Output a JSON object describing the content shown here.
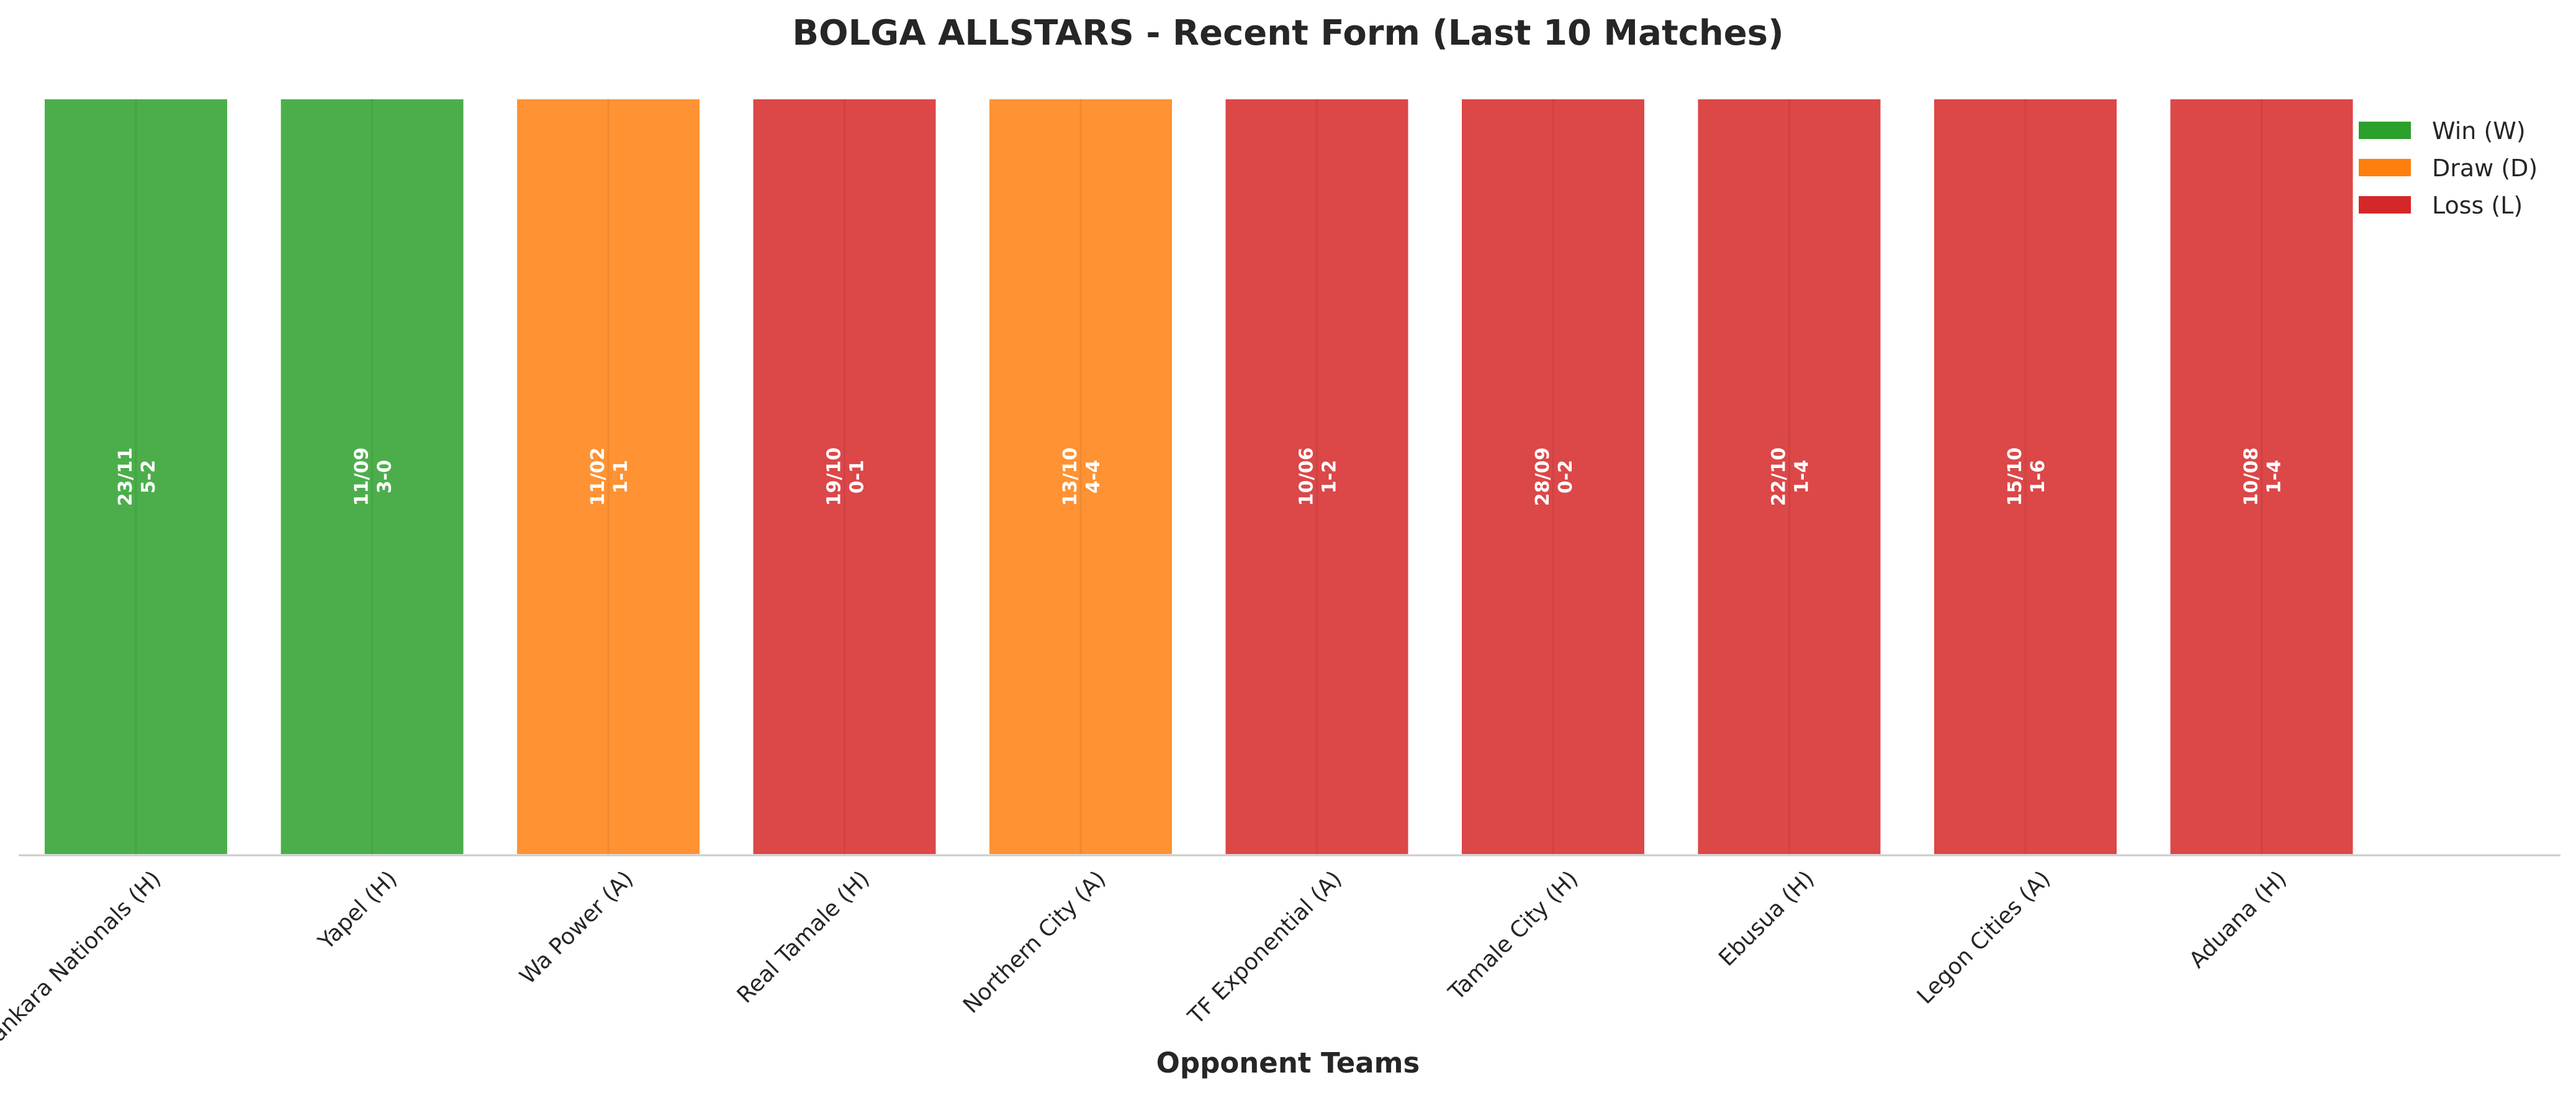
{
  "chart_data": {
    "type": "bar",
    "title": "BOLGA ALLSTARS - Recent Form (Last 10 Matches)",
    "xlabel": "Opponent Teams",
    "ylabel": "",
    "categories": [
      "Sankara Nationals (H)",
      "Yapel (H)",
      "Wa Power (A)",
      "Real Tamale (H)",
      "Northern City (A)",
      "TF Exponential (A)",
      "Tamale City (H)",
      "Ebusua (H)",
      "Legon Cities (A)",
      "Aduana (H)"
    ],
    "values": [
      1,
      1,
      1,
      1,
      1,
      1,
      1,
      1,
      1,
      1
    ],
    "results": [
      "W",
      "W",
      "D",
      "L",
      "D",
      "L",
      "L",
      "L",
      "L",
      "L"
    ],
    "dates": [
      "23/11",
      "11/09",
      "11/02",
      "19/10",
      "13/10",
      "10/06",
      "28/09",
      "22/10",
      "15/10",
      "10/08"
    ],
    "scores": [
      "5-2",
      "3-0",
      "1-1",
      "0-1",
      "4-4",
      "1-2",
      "0-2",
      "1-4",
      "1-6",
      "1-4"
    ],
    "ylim": [
      0,
      1.13
    ],
    "grid": false,
    "legend_position": "top-right",
    "legend": [
      {
        "key": "W",
        "label": "Win (W)",
        "color": "#2ca02c"
      },
      {
        "key": "D",
        "label": "Draw (D)",
        "color": "#ff7f0e"
      },
      {
        "key": "L",
        "label": "Loss (L)",
        "color": "#d62728"
      }
    ]
  }
}
